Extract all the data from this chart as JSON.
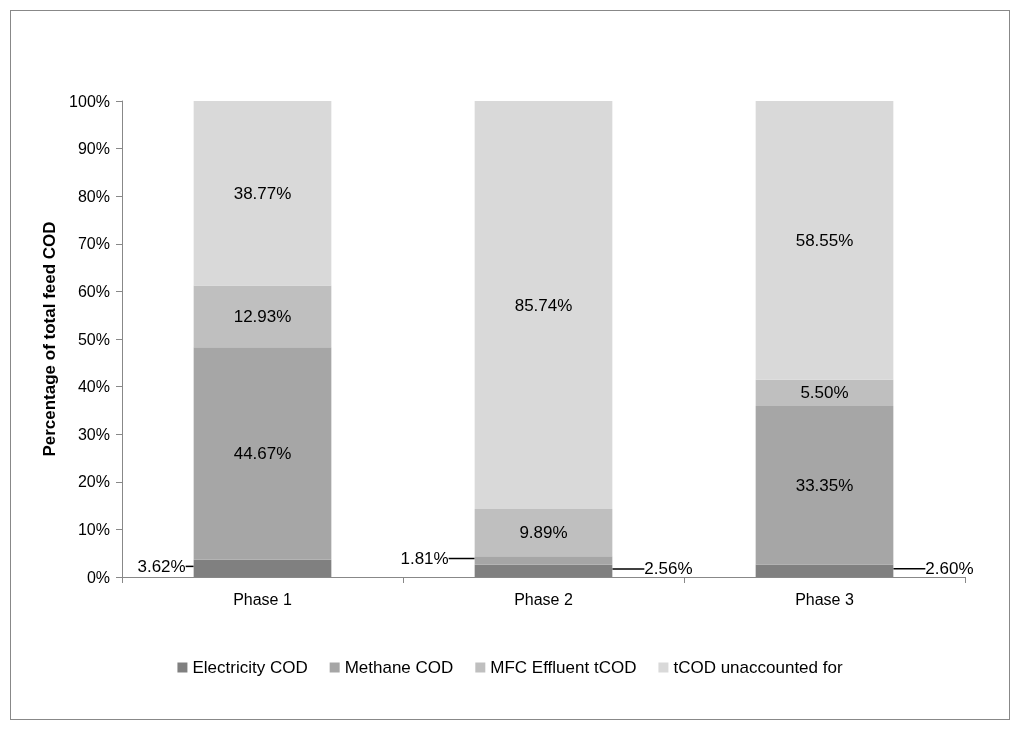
{
  "chart_data": {
    "type": "bar",
    "stacked": true,
    "categories": [
      "Phase 1",
      "Phase 2",
      "Phase 3"
    ],
    "ylabel": "Percentage of total feed COD",
    "ylim": [
      0,
      100
    ],
    "yticks": [
      {
        "value": 0,
        "label": "0%"
      },
      {
        "value": 10,
        "label": "10%"
      },
      {
        "value": 20,
        "label": "20%"
      },
      {
        "value": 30,
        "label": "30%"
      },
      {
        "value": 40,
        "label": "40%"
      },
      {
        "value": 50,
        "label": "50%"
      },
      {
        "value": 60,
        "label": "60%"
      },
      {
        "value": 70,
        "label": "70%"
      },
      {
        "value": 80,
        "label": "80%"
      },
      {
        "value": 90,
        "label": "90%"
      },
      {
        "value": 100,
        "label": "100%"
      }
    ],
    "grid": false,
    "legend": "bottom",
    "series": [
      {
        "name": "Electricity COD",
        "color": "#808080",
        "values": [
          3.62,
          2.56,
          2.6
        ],
        "value_labels": [
          "3.62%",
          "2.56%",
          "2.60%"
        ]
      },
      {
        "name": "Methane COD",
        "color": "#a6a6a6",
        "values": [
          44.67,
          1.81,
          33.35
        ],
        "value_labels": [
          "44.67%",
          "1.81%",
          "33.35%"
        ]
      },
      {
        "name": "MFC Effluent tCOD",
        "color": "#bfbfbf",
        "values": [
          12.93,
          9.89,
          5.5
        ],
        "value_labels": [
          "12.93%",
          "9.89%",
          "5.50%"
        ]
      },
      {
        "name": "tCOD unaccounted for",
        "color": "#d9d9d9",
        "values": [
          38.77,
          85.74,
          58.55
        ],
        "value_labels": [
          "38.77%",
          "85.74%",
          "58.55%"
        ]
      }
    ]
  }
}
